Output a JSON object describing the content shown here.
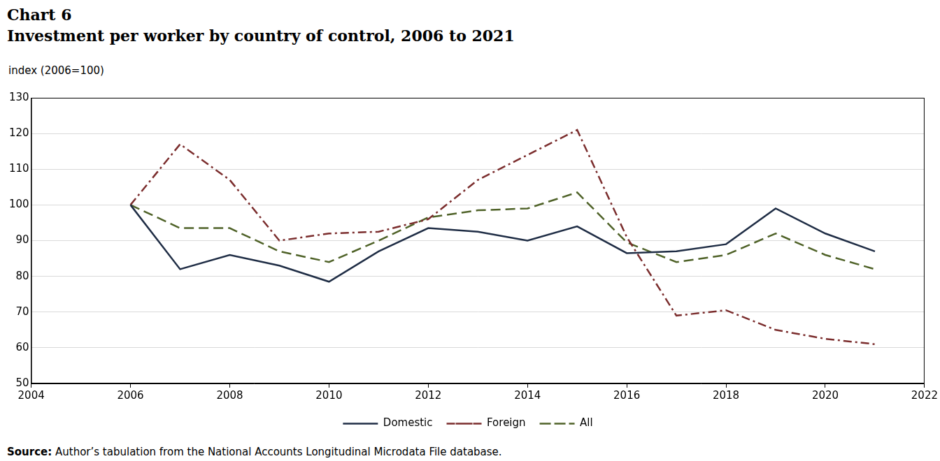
{
  "chart_data": {
    "type": "line",
    "title": "Chart 6",
    "subtitle": "Investment per worker by country of control, 2006 to 2021",
    "y_label": "index (2006=100)",
    "source": "Source: Author’s tabulation from the National Accounts Longitudinal Microdata File database.",
    "x": [
      2006,
      2007,
      2008,
      2009,
      2010,
      2011,
      2012,
      2013,
      2014,
      2015,
      2016,
      2017,
      2018,
      2019,
      2020,
      2021
    ],
    "series": [
      {
        "name": "Domestic",
        "color": "#1f2d45",
        "line_style": "solid",
        "values": [
          100,
          82,
          86,
          83,
          78.5,
          87,
          93.5,
          92.5,
          90,
          94,
          86.5,
          87,
          89,
          99,
          92,
          87
        ]
      },
      {
        "name": "Foreign",
        "color": "#7b2d2d",
        "line_style": "dashdot",
        "values": [
          100,
          117,
          107,
          90,
          92,
          92.5,
          96,
          107,
          114,
          121,
          91,
          69,
          70.5,
          65,
          62.5,
          61
        ]
      },
      {
        "name": "All",
        "color": "#4f6228",
        "line_style": "dashed",
        "values": [
          100,
          93.5,
          93.5,
          87,
          84,
          90,
          96.5,
          98.5,
          99,
          103.5,
          89.5,
          84,
          86,
          92,
          86,
          82
        ]
      }
    ],
    "xlim": [
      2004,
      2022
    ],
    "xticks": [
      2004,
      2006,
      2008,
      2010,
      2012,
      2014,
      2016,
      2018,
      2020,
      2022
    ],
    "ylim": [
      50,
      130
    ],
    "yticks": [
      50,
      60,
      70,
      80,
      90,
      100,
      110,
      120,
      130
    ],
    "grid": true,
    "legend": "bottom"
  }
}
